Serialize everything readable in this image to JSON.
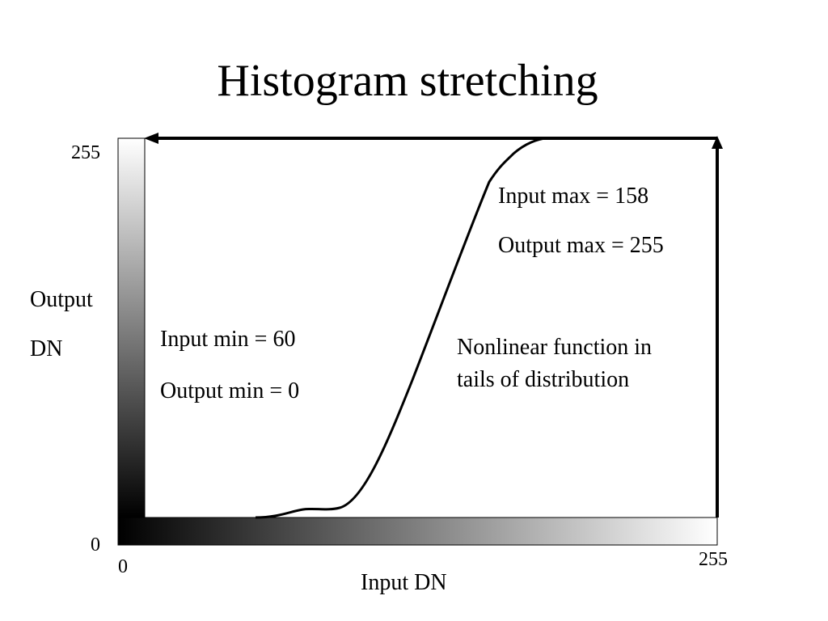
{
  "title": "Histogram stretching",
  "axes": {
    "x_label": "Input DN",
    "y_label_line1": "Output",
    "y_label_line2": "DN",
    "x_tick_min": "0",
    "x_tick_max": "255",
    "y_tick_min": "0",
    "y_tick_max": "255"
  },
  "annotations": {
    "input_min": "Input min = 60",
    "output_min": "Output min = 0",
    "input_max": "Input max = 158",
    "output_max": "Output max = 255",
    "nonlinear": "Nonlinear function in tails of distribution"
  },
  "colors": {
    "line": "#000000",
    "gradient_dark": "#000000",
    "gradient_light": "#ffffff"
  }
}
